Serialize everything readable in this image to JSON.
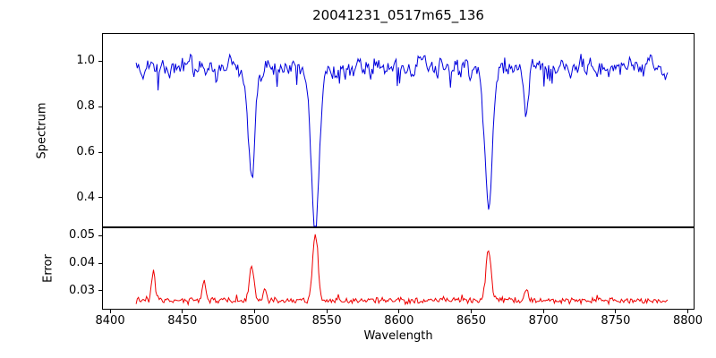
{
  "title": "20041231_0517m65_136",
  "chart_data": {
    "type": "line",
    "title": "20041231_0517m65_136",
    "xlabel": "Wavelength",
    "grid": false,
    "legend": "none",
    "xlim": [
      8395,
      8804
    ],
    "x_data_range": [
      8418,
      8786
    ],
    "x_tick_values": [
      8400,
      8450,
      8500,
      8550,
      8600,
      8650,
      8700,
      8750,
      8800
    ],
    "x_tick_labels": [
      "8400",
      "8450",
      "8500",
      "8550",
      "8600",
      "8650",
      "8700",
      "8750",
      "8800"
    ],
    "panels": [
      {
        "name": "spectrum",
        "ylabel": "Spectrum",
        "line_color": "#0000dd",
        "ylim": [
          0.27,
          1.12
        ],
        "y_tick_values": [
          0.4,
          0.6,
          0.8,
          1.0
        ],
        "y_tick_labels": [
          "0.4",
          "0.6",
          "0.8",
          "1.0"
        ],
        "continuum_level": 0.97,
        "noise_sigma": 0.02,
        "absorption_lines": [
          {
            "center": 8498,
            "depth": 0.48,
            "sigma": 2.2
          },
          {
            "center": 8542,
            "depth": 0.7,
            "sigma": 2.8
          },
          {
            "center": 8662,
            "depth": 0.65,
            "sigma": 2.6
          },
          {
            "center": 8688,
            "depth": 0.22,
            "sigma": 1.4
          }
        ]
      },
      {
        "name": "error",
        "ylabel": "Error",
        "line_color": "#ee0000",
        "ylim": [
          0.0235,
          0.053
        ],
        "y_tick_values": [
          0.03,
          0.04,
          0.05
        ],
        "y_tick_labels": [
          "0.03",
          "0.04",
          "0.05"
        ],
        "baseline_level": 0.0265,
        "noise_sigma": 0.0005,
        "peaks": [
          {
            "center": 8430,
            "height": 0.0105,
            "sigma": 1.2
          },
          {
            "center": 8465,
            "height": 0.0075,
            "sigma": 1.2
          },
          {
            "center": 8498,
            "height": 0.013,
            "sigma": 1.6
          },
          {
            "center": 8507,
            "height": 0.0045,
            "sigma": 1.0
          },
          {
            "center": 8542,
            "height": 0.0245,
            "sigma": 1.8
          },
          {
            "center": 8662,
            "height": 0.0185,
            "sigma": 1.8
          },
          {
            "center": 8688,
            "height": 0.004,
            "sigma": 1.2
          }
        ]
      }
    ],
    "noise_seed": 20041231
  }
}
